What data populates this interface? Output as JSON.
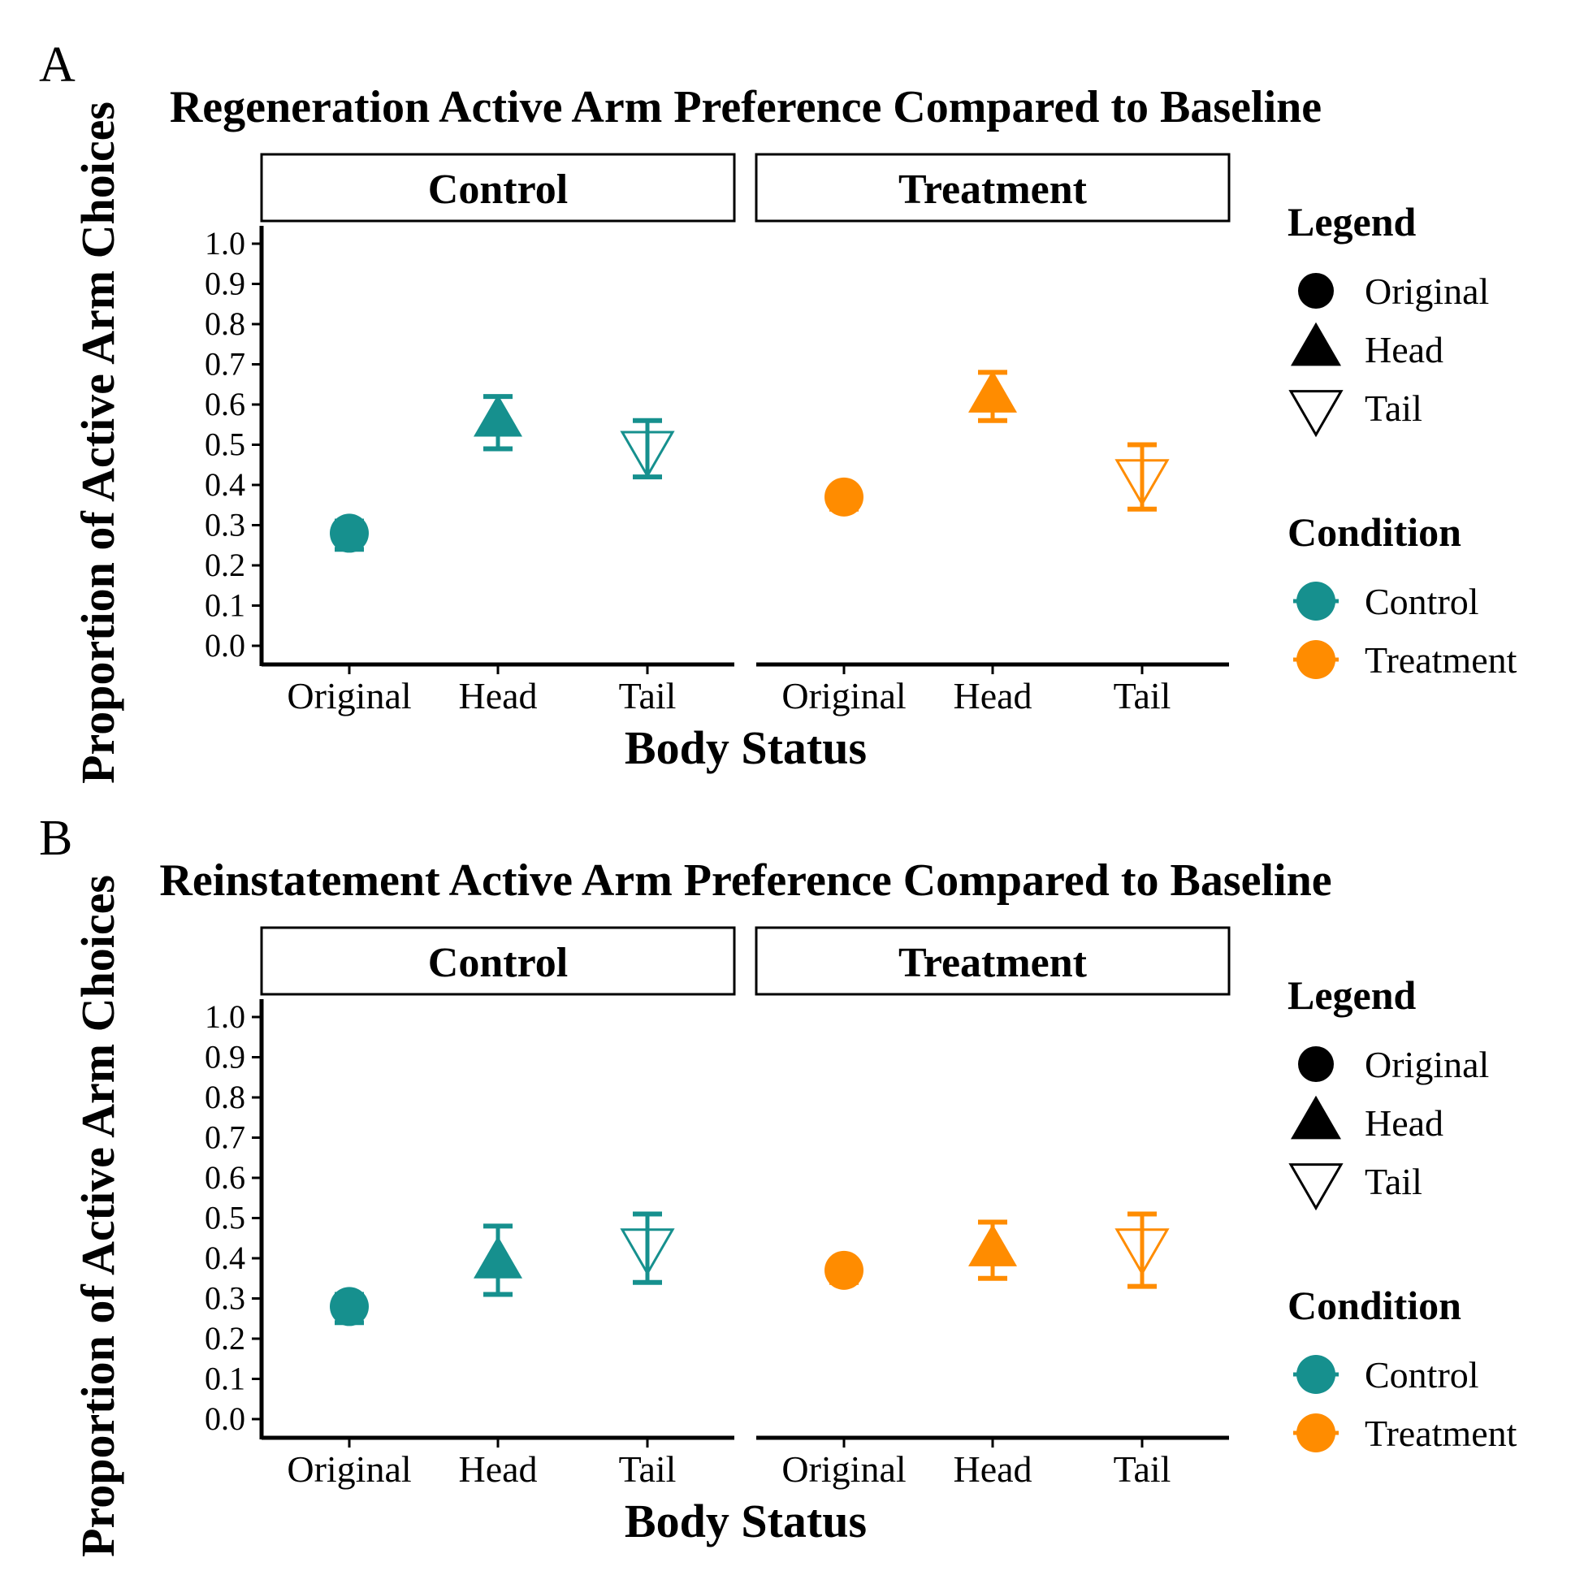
{
  "colors": {
    "control": "#16908e",
    "treatment": "#ff8c00",
    "axis": "#000000"
  },
  "legend": {
    "shape_title": "Legend",
    "shape_items": [
      {
        "label": "Original",
        "shape": "filled-circle"
      },
      {
        "label": "Head",
        "shape": "filled-triangle-up"
      },
      {
        "label": "Tail",
        "shape": "open-triangle-down"
      }
    ],
    "color_title": "Condition",
    "color_items": [
      {
        "label": "Control",
        "color_key": "control"
      },
      {
        "label": "Treatment",
        "color_key": "treatment"
      }
    ]
  },
  "chart_data": [
    {
      "type": "scatter",
      "panel_label": "A",
      "title": "Regeneration Active Arm Preference Compared to Baseline",
      "xlabel": "Body Status",
      "ylabel": "Proportion of Active Arm Choices",
      "ylim": [
        0.0,
        1.0
      ],
      "yticks": [
        "0.0",
        "0.1",
        "0.2",
        "0.3",
        "0.4",
        "0.5",
        "0.6",
        "0.7",
        "0.8",
        "0.9",
        "1.0"
      ],
      "categories": [
        "Original",
        "Head",
        "Tail"
      ],
      "facets": [
        "Control",
        "Treatment"
      ],
      "grid": false,
      "legend_position": "right",
      "series": [
        {
          "name": "Control",
          "points": [
            {
              "x": "Original",
              "y": 0.28,
              "ymin": 0.24,
              "ymax": 0.31
            },
            {
              "x": "Head",
              "y": 0.56,
              "ymin": 0.49,
              "ymax": 0.62
            },
            {
              "x": "Tail",
              "y": 0.49,
              "ymin": 0.42,
              "ymax": 0.56
            }
          ]
        },
        {
          "name": "Treatment",
          "points": [
            {
              "x": "Original",
              "y": 0.37,
              "ymin": 0.34,
              "ymax": 0.39
            },
            {
              "x": "Head",
              "y": 0.62,
              "ymin": 0.56,
              "ymax": 0.68
            },
            {
              "x": "Tail",
              "y": 0.42,
              "ymin": 0.34,
              "ymax": 0.5
            }
          ]
        }
      ]
    },
    {
      "type": "scatter",
      "panel_label": "B",
      "title": "Reinstatement Active Arm Preference Compared to Baseline",
      "xlabel": "Body Status",
      "ylabel": "Proportion of Active Arm Choices",
      "ylim": [
        0.0,
        1.0
      ],
      "yticks": [
        "0.0",
        "0.1",
        "0.2",
        "0.3",
        "0.4",
        "0.5",
        "0.6",
        "0.7",
        "0.8",
        "0.9",
        "1.0"
      ],
      "categories": [
        "Original",
        "Head",
        "Tail"
      ],
      "facets": [
        "Control",
        "Treatment"
      ],
      "grid": false,
      "legend_position": "right",
      "series": [
        {
          "name": "Control",
          "points": [
            {
              "x": "Original",
              "y": 0.28,
              "ymin": 0.24,
              "ymax": 0.31
            },
            {
              "x": "Head",
              "y": 0.39,
              "ymin": 0.31,
              "ymax": 0.48
            },
            {
              "x": "Tail",
              "y": 0.43,
              "ymin": 0.34,
              "ymax": 0.51
            }
          ]
        },
        {
          "name": "Treatment",
          "points": [
            {
              "x": "Original",
              "y": 0.37,
              "ymin": 0.34,
              "ymax": 0.39
            },
            {
              "x": "Head",
              "y": 0.42,
              "ymin": 0.35,
              "ymax": 0.49
            },
            {
              "x": "Tail",
              "y": 0.43,
              "ymin": 0.33,
              "ymax": 0.51
            }
          ]
        }
      ]
    }
  ]
}
